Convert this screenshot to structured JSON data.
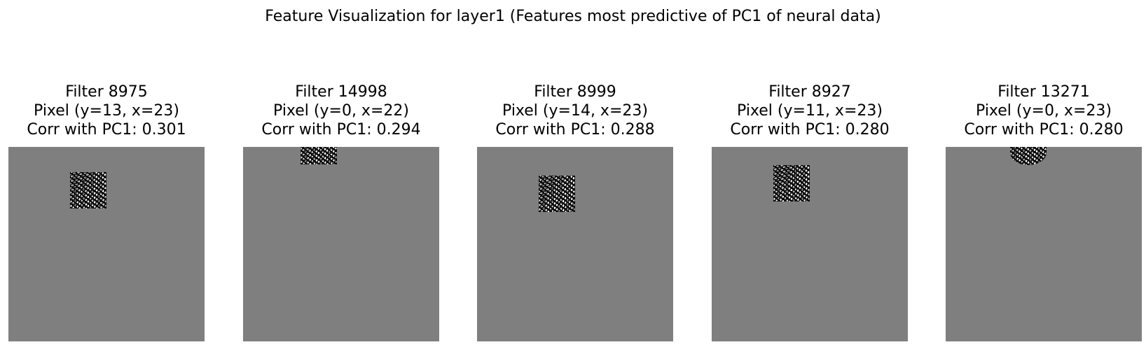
{
  "figure": {
    "title": "Feature Visualization for layer1 (Features most predictive of PC1 of neural data)"
  },
  "panels": [
    {
      "filter": "Filter 8975",
      "pixel": "Pixel (y=13, x=23)",
      "corr": "Corr with PC1: 0.301"
    },
    {
      "filter": "Filter 14998",
      "pixel": "Pixel (y=0, x=22)",
      "corr": "Corr with PC1: 0.294"
    },
    {
      "filter": "Filter 8999",
      "pixel": "Pixel (y=14, x=23)",
      "corr": "Corr with PC1: 0.288"
    },
    {
      "filter": "Filter 8927",
      "pixel": "Pixel (y=11, x=23)",
      "corr": "Corr with PC1: 0.280"
    },
    {
      "filter": "Filter 13271",
      "pixel": "Pixel (y=0, x=23)",
      "corr": "Corr with PC1: 0.280"
    }
  ]
}
